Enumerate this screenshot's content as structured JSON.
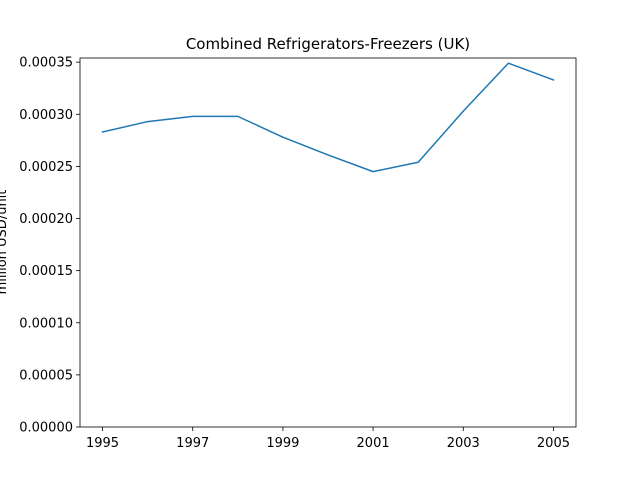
{
  "chart_data": {
    "type": "line",
    "title": "Combined Refrigerators-Freezers (UK)",
    "xlabel": "",
    "ylabel": "million USD/unit",
    "x": [
      1995,
      1996,
      1997,
      1998,
      1999,
      2000,
      2001,
      2002,
      2003,
      2004,
      2005
    ],
    "series": [
      {
        "values": [
          0.000283,
          0.000293,
          0.000298,
          0.000298,
          0.000278,
          0.000261,
          0.000245,
          0.000254,
          0.000303,
          0.000349,
          0.000333
        ],
        "color": "#1f77b4"
      }
    ],
    "xlim": [
      1994.5,
      2005.5
    ],
    "ylim": [
      0,
      0.000354
    ],
    "x_ticks": [
      1995,
      1997,
      1999,
      2001,
      2003,
      2005
    ],
    "x_tick_labels": [
      "1995",
      "1997",
      "1999",
      "2001",
      "2003",
      "2005"
    ],
    "y_ticks": [
      0,
      5e-05,
      0.0001,
      0.00015,
      0.0002,
      0.00025,
      0.0003,
      0.00035
    ],
    "y_tick_labels": [
      "0.00000",
      "0.00005",
      "0.00010",
      "0.00015",
      "0.00020",
      "0.00025",
      "0.00030",
      "0.00035"
    ],
    "grid": false,
    "legend": "none"
  }
}
